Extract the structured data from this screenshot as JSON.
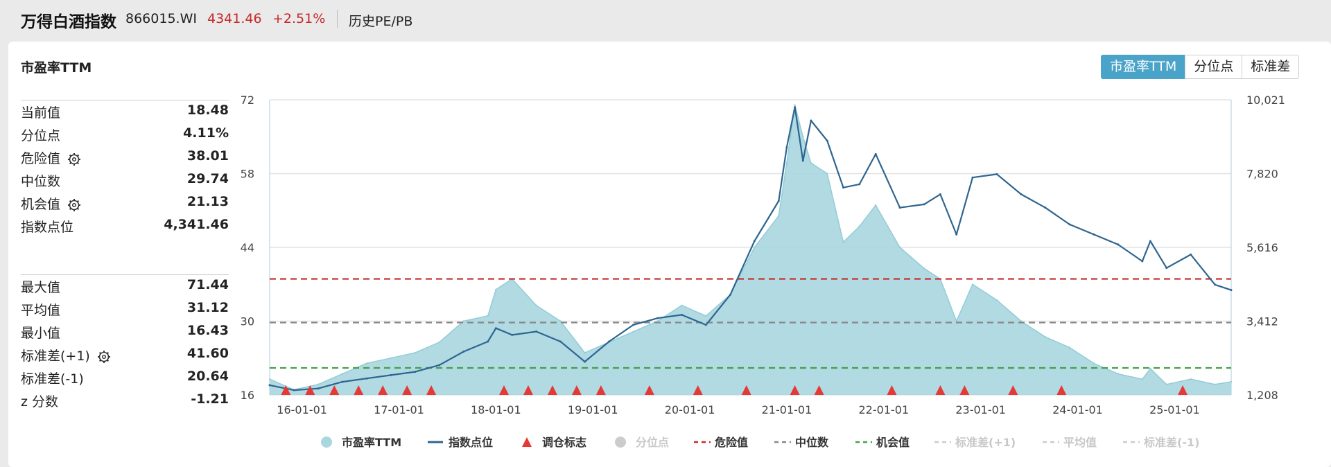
{
  "header": {
    "name": "万得白酒指数",
    "code": "866015.WI",
    "price": "4341.46",
    "change": "+2.51%",
    "history": "历史PE/PB"
  },
  "panel": {
    "title": "市盈率TTM",
    "buttons": [
      "市盈率TTM",
      "分位点",
      "标准差"
    ],
    "active_button": 0
  },
  "stats_top": [
    {
      "label": "当前值",
      "value": "18.48",
      "gear": false
    },
    {
      "label": "分位点",
      "value": "4.11%",
      "gear": false
    },
    {
      "label": "危险值",
      "value": "38.01",
      "gear": true
    },
    {
      "label": "中位数",
      "value": "29.74",
      "gear": false
    },
    {
      "label": "机会值",
      "value": "21.13",
      "gear": true
    },
    {
      "label": "指数点位",
      "value": "4,341.46",
      "gear": false
    }
  ],
  "stats_bottom": [
    {
      "label": "最大值",
      "value": "71.44",
      "gear": false
    },
    {
      "label": "平均值",
      "value": "31.12",
      "gear": false
    },
    {
      "label": "最小值",
      "value": "16.43",
      "gear": false
    },
    {
      "label": "标准差(+1)",
      "value": "41.60",
      "gear": true
    },
    {
      "label": "标准差(-1)",
      "value": "20.64",
      "gear": false
    },
    {
      "label": "z 分数",
      "value": "-1.21",
      "gear": false
    }
  ],
  "colors": {
    "pe_fill": "#a9d6df",
    "pe_line": "#92cdd7",
    "index_line": "#2e6590",
    "danger": "#c62828",
    "median": "#888888",
    "opportunity": "#43a047",
    "marker": "#e53935",
    "grid": "#e3e3e3",
    "button_active": "#4aa3c8",
    "price": "#c62828"
  },
  "chart_data": {
    "type": "area",
    "x_start": "2015-09",
    "x_end": "2025-08",
    "x_ticks": [
      "16-01-01",
      "17-01-01",
      "18-01-01",
      "19-01-01",
      "20-01-01",
      "21-01-01",
      "22-01-01",
      "23-01-01",
      "24-01-01",
      "25-01-01"
    ],
    "y_left": {
      "ticks": [
        16,
        30,
        44,
        58,
        72
      ],
      "range": [
        16,
        72
      ]
    },
    "y_right": {
      "ticks": [
        "1,208",
        "3,412",
        "5,616",
        "7,820",
        "10,021"
      ],
      "range": [
        1208,
        10021
      ]
    },
    "reference_lines": [
      {
        "name": "危险值",
        "value": 38.01,
        "style": "dashed",
        "color": "#c62828"
      },
      {
        "name": "中位数",
        "value": 29.74,
        "style": "dashed",
        "color": "#888888"
      },
      {
        "name": "机会值",
        "value": 21.13,
        "style": "dashed",
        "color": "#43a047"
      }
    ],
    "series": [
      {
        "name": "市盈率TTM",
        "axis": "left",
        "x": [
          "2015-09",
          "2015-12",
          "2016-03",
          "2016-06",
          "2016-09",
          "2016-12",
          "2017-03",
          "2017-06",
          "2017-09",
          "2017-12",
          "2018-01",
          "2018-03",
          "2018-06",
          "2018-09",
          "2018-12",
          "2019-03",
          "2019-06",
          "2019-09",
          "2019-12",
          "2020-03",
          "2020-06",
          "2020-09",
          "2020-12",
          "2021-01",
          "2021-02",
          "2021-03",
          "2021-04",
          "2021-06",
          "2021-08",
          "2021-10",
          "2021-12",
          "2022-03",
          "2022-06",
          "2022-08",
          "2022-10",
          "2022-12",
          "2023-03",
          "2023-06",
          "2023-09",
          "2023-12",
          "2024-03",
          "2024-06",
          "2024-09",
          "2024-10",
          "2024-12",
          "2025-03",
          "2025-06",
          "2025-08"
        ],
        "values": [
          19,
          17,
          18,
          20,
          22,
          23,
          24,
          26,
          30,
          31,
          36,
          38,
          33,
          30,
          24,
          26,
          28,
          30,
          33,
          31,
          35,
          44,
          50,
          60,
          71,
          65,
          60,
          58,
          45,
          48,
          52,
          44,
          40,
          38,
          30,
          37,
          34,
          30,
          27,
          25,
          22,
          20,
          19,
          21,
          18,
          19,
          18,
          18.5
        ]
      },
      {
        "name": "指数点位",
        "axis": "right",
        "x": [
          "2015-09",
          "2015-12",
          "2016-03",
          "2016-06",
          "2016-09",
          "2016-12",
          "2017-03",
          "2017-06",
          "2017-09",
          "2017-12",
          "2018-01",
          "2018-03",
          "2018-06",
          "2018-09",
          "2018-12",
          "2019-03",
          "2019-06",
          "2019-09",
          "2019-12",
          "2020-03",
          "2020-06",
          "2020-09",
          "2020-12",
          "2021-01",
          "2021-02",
          "2021-03",
          "2021-04",
          "2021-06",
          "2021-08",
          "2021-10",
          "2021-12",
          "2022-03",
          "2022-06",
          "2022-08",
          "2022-10",
          "2022-12",
          "2023-03",
          "2023-06",
          "2023-09",
          "2023-12",
          "2024-03",
          "2024-06",
          "2024-09",
          "2024-10",
          "2024-12",
          "2025-03",
          "2025-06",
          "2025-08"
        ],
        "values": [
          1500,
          1350,
          1400,
          1600,
          1700,
          1800,
          1900,
          2100,
          2500,
          2800,
          3200,
          3000,
          3100,
          2800,
          2200,
          2800,
          3300,
          3500,
          3600,
          3300,
          4200,
          5800,
          7000,
          8600,
          9800,
          8200,
          9400,
          8800,
          7400,
          7500,
          8400,
          6800,
          6900,
          7200,
          6000,
          7700,
          7800,
          7200,
          6800,
          6300,
          6000,
          5700,
          5200,
          5800,
          5000,
          5400,
          4500,
          4341
        ]
      }
    ],
    "rebalance_markers": [
      "2015-11",
      "2016-02",
      "2016-05",
      "2016-08",
      "2016-11",
      "2017-02",
      "2017-05",
      "2018-02",
      "2018-05",
      "2018-08",
      "2018-11",
      "2019-02",
      "2019-08",
      "2020-02",
      "2020-08",
      "2021-02",
      "2021-05",
      "2022-02",
      "2022-08",
      "2022-11",
      "2023-05",
      "2023-11",
      "2025-02"
    ],
    "legend": [
      {
        "label": "市盈率TTM",
        "kind": "circle",
        "color": "#a9d6df",
        "active": true
      },
      {
        "label": "指数点位",
        "kind": "line",
        "color": "#2e6590",
        "active": true
      },
      {
        "label": "调仓标志",
        "kind": "triangle",
        "color": "#e53935",
        "active": true
      },
      {
        "label": "分位点",
        "kind": "circle",
        "color": "#cccccc",
        "active": false
      },
      {
        "label": "危险值",
        "kind": "dash",
        "color": "#c62828",
        "active": true
      },
      {
        "label": "中位数",
        "kind": "dash",
        "color": "#888888",
        "active": true
      },
      {
        "label": "机会值",
        "kind": "dash",
        "color": "#43a047",
        "active": true
      },
      {
        "label": "标准差(+1)",
        "kind": "dash",
        "color": "#cccccc",
        "active": false
      },
      {
        "label": "平均值",
        "kind": "dash",
        "color": "#cccccc",
        "active": false
      },
      {
        "label": "标准差(-1)",
        "kind": "dash",
        "color": "#cccccc",
        "active": false
      }
    ],
    "legend_position": "bottom"
  }
}
